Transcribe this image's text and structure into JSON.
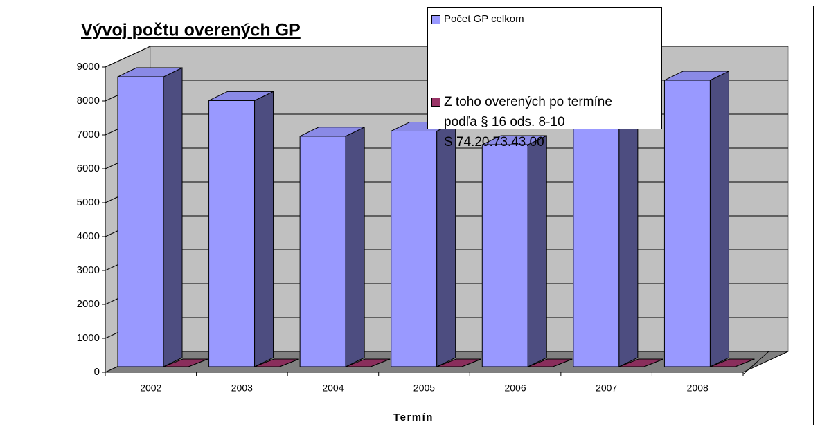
{
  "chart_data": {
    "type": "bar3d",
    "title": "Vývoj počtu overených GP",
    "x_label": "Termín",
    "categories": [
      "2002",
      "2003",
      "2004",
      "2005",
      "2006",
      "2007",
      "2008"
    ],
    "series": [
      {
        "name": "Počet GP celkom",
        "color": "#9999ff",
        "values": [
          8550,
          7850,
          6800,
          6950,
          6550,
          7400,
          8450
        ]
      },
      {
        "name": "Z toho overených po termíne\npodľa § 16 ods. 8-10\nS 74.20.73.43.00",
        "color": "#993366",
        "values": [
          0,
          0,
          0,
          0,
          0,
          0,
          0
        ]
      }
    ],
    "ylim": [
      0,
      9000
    ],
    "yticks": [
      0,
      1000,
      2000,
      3000,
      4000,
      5000,
      6000,
      7000,
      8000,
      9000
    ],
    "grid": true
  }
}
